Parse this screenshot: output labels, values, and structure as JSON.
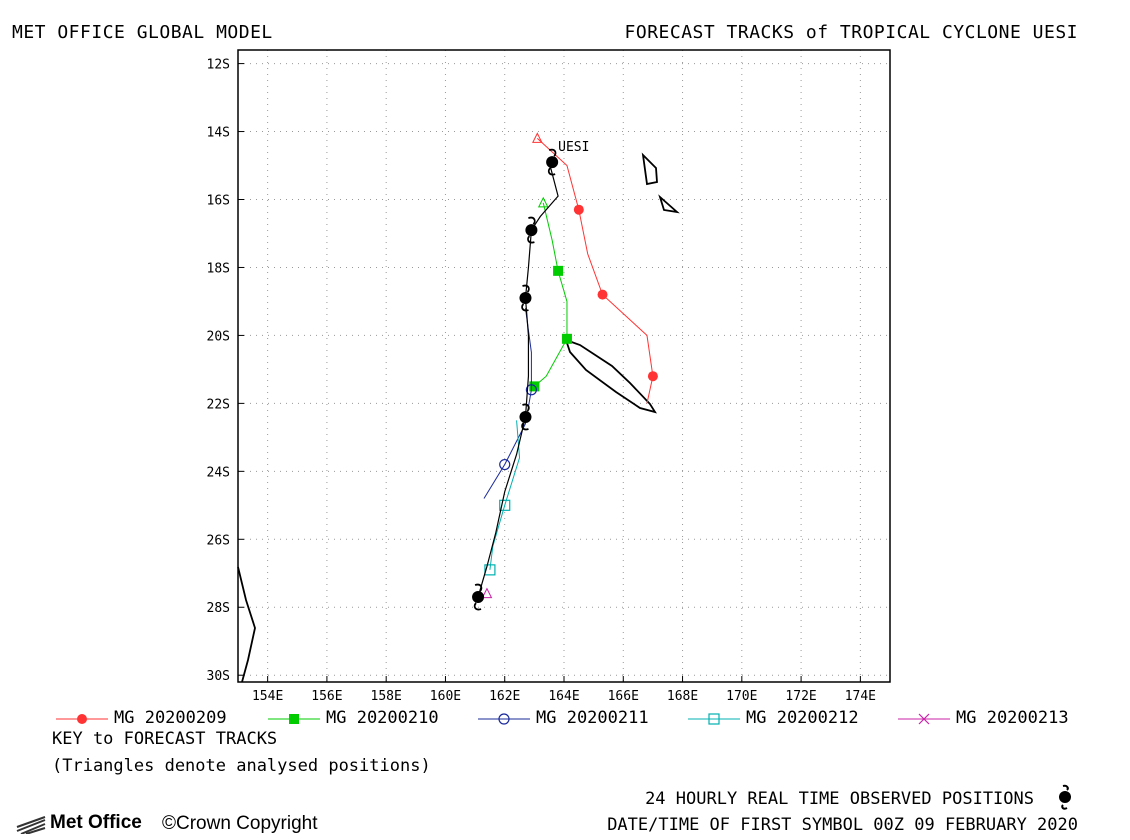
{
  "header": {
    "left": "MET OFFICE GLOBAL MODEL",
    "right": "FORECAST TRACKS of TROPICAL CYCLONE UESI"
  },
  "storm_label": "UESI",
  "map": {
    "lon_range": [
      153,
      175
    ],
    "lat_range": [
      -30.2,
      -11.6
    ],
    "lat_ticks": [
      "12S",
      "14S",
      "16S",
      "18S",
      "20S",
      "22S",
      "24S",
      "26S",
      "28S",
      "30S"
    ],
    "lat_tick_values": [
      -12,
      -14,
      -16,
      -18,
      -20,
      -22,
      -24,
      -26,
      -28,
      -30
    ],
    "lon_ticks": [
      "154E",
      "156E",
      "158E",
      "160E",
      "162E",
      "164E",
      "166E",
      "168E",
      "170E",
      "172E",
      "174E"
    ],
    "lon_tick_values": [
      154,
      156,
      158,
      160,
      162,
      164,
      166,
      168,
      170,
      172,
      174
    ],
    "grid": "dotted"
  },
  "tracks": [
    {
      "name": "MG 20200209",
      "color": "#ff3333",
      "marker": "filled-circle",
      "points": [
        [
          163.1,
          -14.2
        ],
        [
          164.1,
          -15.0
        ],
        [
          164.5,
          -16.3
        ],
        [
          164.8,
          -17.6
        ],
        [
          165.3,
          -18.8
        ],
        [
          166.8,
          -20.0
        ],
        [
          167.0,
          -21.2
        ],
        [
          166.8,
          -22.0
        ]
      ]
    },
    {
      "name": "MG 20200210",
      "color": "#00cc00",
      "marker": "filled-square",
      "points": [
        [
          163.3,
          -16.1
        ],
        [
          163.6,
          -17.2
        ],
        [
          163.8,
          -18.1
        ],
        [
          164.1,
          -19.0
        ],
        [
          164.1,
          -20.1
        ],
        [
          163.4,
          -21.2
        ],
        [
          163.0,
          -21.5
        ]
      ]
    },
    {
      "name": "MG 20200211",
      "color": "#1a2a9a",
      "marker": "open-circle",
      "points": [
        [
          162.7,
          -19.2
        ],
        [
          162.9,
          -20.5
        ],
        [
          162.9,
          -21.6
        ],
        [
          162.7,
          -22.6
        ],
        [
          162.0,
          -23.8
        ],
        [
          161.3,
          -24.8
        ]
      ]
    },
    {
      "name": "MG 20200212",
      "color": "#00b0b0",
      "marker": "open-square",
      "points": [
        [
          162.4,
          -22.5
        ],
        [
          162.5,
          -23.6
        ],
        [
          162.0,
          -25.0
        ],
        [
          161.6,
          -26.2
        ],
        [
          161.5,
          -26.9
        ]
      ]
    },
    {
      "name": "MG 20200213",
      "color": "#cc22aa",
      "marker": "x",
      "points": [
        [
          161.4,
          -27.6
        ]
      ]
    }
  ],
  "observed_track": [
    [
      163.5,
      -14.9
    ],
    [
      163.8,
      -15.9
    ],
    [
      163.2,
      -16.5
    ],
    [
      162.9,
      -16.9
    ],
    [
      162.8,
      -18.0
    ],
    [
      162.7,
      -18.9
    ],
    [
      162.8,
      -20.0
    ],
    [
      162.8,
      -21.2
    ],
    [
      162.7,
      -22.4
    ],
    [
      162.4,
      -23.5
    ],
    [
      162.0,
      -24.6
    ],
    [
      161.7,
      -25.8
    ],
    [
      161.4,
      -26.8
    ],
    [
      161.1,
      -27.7
    ]
  ],
  "observed_symbols": [
    [
      163.6,
      -14.9
    ],
    [
      162.9,
      -16.9
    ],
    [
      162.7,
      -18.9
    ],
    [
      162.7,
      -22.4
    ],
    [
      161.1,
      -27.7
    ]
  ],
  "triangles": [
    {
      "color": "#ff3333",
      "lon": 163.1,
      "lat": -14.2
    },
    {
      "color": "#00cc00",
      "lon": 163.3,
      "lat": -16.1
    },
    {
      "color": "#cc22aa",
      "lon": 161.4,
      "lat": -27.6
    }
  ],
  "legend": [
    {
      "label": "MG 20200209",
      "color": "#ff3333",
      "marker": "filled-circle"
    },
    {
      "label": "MG 20200210",
      "color": "#00cc00",
      "marker": "filled-square"
    },
    {
      "label": "MG 20200211",
      "color": "#1a2a9a",
      "marker": "open-circle"
    },
    {
      "label": "MG 20200212",
      "color": "#00b0b0",
      "marker": "open-square"
    },
    {
      "label": "MG 20200213",
      "color": "#cc22aa",
      "marker": "x"
    }
  ],
  "key": {
    "title": "KEY to FORECAST TRACKS",
    "note": "(Triangles denote analysed positions)"
  },
  "footer": {
    "logo": "Met Office",
    "copyright": "©Crown Copyright",
    "observed": "24 HOURLY REAL TIME OBSERVED POSITIONS",
    "datetime": "DATE/TIME OF FIRST SYMBOL 00Z 09 FEBRUARY 2020"
  },
  "icons": {
    "observed_symbol": "cyclone-icon",
    "logo_mark": "met-office-lines-icon"
  }
}
